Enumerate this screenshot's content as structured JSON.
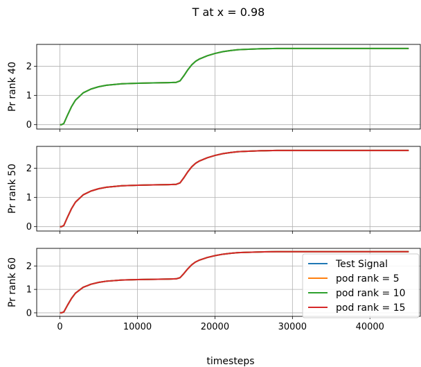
{
  "chart_data": {
    "type": "line",
    "title": "T at x = 0.98",
    "xlabel": "timesteps",
    "xlim": [
      -3000,
      46500
    ],
    "xticks": [
      0,
      10000,
      20000,
      30000,
      40000
    ],
    "xtick_labels": [
      "0",
      "10000",
      "20000",
      "30000",
      "40000"
    ],
    "grid": true,
    "x": [
      0,
      200,
      500,
      1000,
      1500,
      2000,
      3000,
      4000,
      5000,
      6000,
      8000,
      10000,
      12000,
      14000,
      15000,
      15500,
      16000,
      16500,
      17000,
      17500,
      18000,
      19000,
      20000,
      21000,
      22000,
      23000,
      24000,
      26000,
      28000,
      30000,
      35000,
      40000,
      45000
    ],
    "panels": [
      {
        "ylabel": "Pr rank 40",
        "ylim": [
          -0.15,
          2.75
        ],
        "yticks": [
          0,
          1,
          2
        ],
        "ytick_labels": [
          "0",
          "1",
          "2"
        ],
        "series": [
          {
            "name": "Test Signal",
            "color": "#1f77b4",
            "values": [
              0.0,
              0.0,
              0.04,
              0.34,
              0.62,
              0.84,
              1.09,
              1.22,
              1.3,
              1.35,
              1.4,
              1.42,
              1.43,
              1.44,
              1.45,
              1.5,
              1.68,
              1.88,
              2.05,
              2.17,
              2.25,
              2.36,
              2.44,
              2.5,
              2.54,
              2.57,
              2.58,
              2.6,
              2.61,
              2.61,
              2.61,
              2.61,
              2.61
            ]
          },
          {
            "name": "pod rank = 5",
            "color": "#ff7f0e",
            "values": [
              0.0,
              0.0,
              0.04,
              0.34,
              0.62,
              0.84,
              1.09,
              1.22,
              1.3,
              1.35,
              1.4,
              1.42,
              1.43,
              1.44,
              1.45,
              1.5,
              1.68,
              1.88,
              2.05,
              2.17,
              2.25,
              2.36,
              2.44,
              2.5,
              2.54,
              2.57,
              2.58,
              2.6,
              2.61,
              2.61,
              2.61,
              2.61,
              2.61
            ]
          },
          {
            "name": "pod rank = 10",
            "color": "#2ca02c",
            "values": [
              0.0,
              0.0,
              0.04,
              0.34,
              0.62,
              0.84,
              1.09,
              1.22,
              1.3,
              1.35,
              1.4,
              1.42,
              1.43,
              1.44,
              1.45,
              1.5,
              1.68,
              1.88,
              2.05,
              2.17,
              2.25,
              2.36,
              2.44,
              2.5,
              2.54,
              2.57,
              2.58,
              2.6,
              2.61,
              2.61,
              2.61,
              2.61,
              2.61
            ]
          }
        ]
      },
      {
        "ylabel": "Pr rank 50",
        "ylim": [
          -0.15,
          2.75
        ],
        "yticks": [
          0,
          1,
          2
        ],
        "ytick_labels": [
          "0",
          "1",
          "2"
        ],
        "series": [
          {
            "name": "Test Signal",
            "color": "#1f77b4",
            "values": [
              0.0,
              0.0,
              0.04,
              0.34,
              0.62,
              0.84,
              1.09,
              1.22,
              1.3,
              1.35,
              1.4,
              1.42,
              1.43,
              1.44,
              1.45,
              1.5,
              1.68,
              1.88,
              2.05,
              2.17,
              2.25,
              2.36,
              2.44,
              2.5,
              2.54,
              2.57,
              2.58,
              2.6,
              2.61,
              2.61,
              2.61,
              2.61,
              2.61
            ]
          },
          {
            "name": "pod rank = 5",
            "color": "#ff7f0e",
            "values": [
              0.0,
              0.0,
              0.04,
              0.34,
              0.62,
              0.84,
              1.09,
              1.22,
              1.3,
              1.35,
              1.4,
              1.42,
              1.43,
              1.44,
              1.45,
              1.5,
              1.68,
              1.88,
              2.05,
              2.17,
              2.25,
              2.36,
              2.44,
              2.5,
              2.54,
              2.57,
              2.58,
              2.6,
              2.61,
              2.61,
              2.61,
              2.61,
              2.61
            ]
          },
          {
            "name": "pod rank = 10",
            "color": "#2ca02c",
            "values": [
              0.0,
              0.0,
              0.04,
              0.34,
              0.62,
              0.84,
              1.09,
              1.22,
              1.3,
              1.35,
              1.4,
              1.42,
              1.43,
              1.44,
              1.45,
              1.5,
              1.68,
              1.88,
              2.05,
              2.17,
              2.25,
              2.36,
              2.44,
              2.5,
              2.54,
              2.57,
              2.58,
              2.6,
              2.61,
              2.61,
              2.61,
              2.61,
              2.61
            ]
          },
          {
            "name": "pod rank = 15",
            "color": "#d62728",
            "values": [
              0.0,
              0.0,
              0.04,
              0.34,
              0.62,
              0.84,
              1.09,
              1.22,
              1.3,
              1.35,
              1.4,
              1.42,
              1.43,
              1.44,
              1.45,
              1.5,
              1.68,
              1.88,
              2.05,
              2.17,
              2.25,
              2.36,
              2.44,
              2.5,
              2.54,
              2.57,
              2.58,
              2.6,
              2.61,
              2.61,
              2.61,
              2.61,
              2.61
            ]
          }
        ]
      },
      {
        "ylabel": "Pr rank 60",
        "ylim": [
          -0.15,
          2.75
        ],
        "yticks": [
          0,
          1,
          2
        ],
        "ytick_labels": [
          "0",
          "1",
          "2"
        ],
        "legend": "top-right",
        "series": [
          {
            "name": "Test Signal",
            "color": "#1f77b4",
            "values": [
              0.0,
              0.0,
              0.04,
              0.34,
              0.62,
              0.84,
              1.09,
              1.22,
              1.3,
              1.35,
              1.4,
              1.42,
              1.43,
              1.44,
              1.45,
              1.5,
              1.68,
              1.88,
              2.05,
              2.17,
              2.25,
              2.36,
              2.44,
              2.5,
              2.54,
              2.57,
              2.58,
              2.6,
              2.61,
              2.61,
              2.61,
              2.61,
              2.61
            ]
          },
          {
            "name": "pod rank = 5",
            "color": "#ff7f0e",
            "values": [
              0.0,
              0.0,
              0.04,
              0.34,
              0.62,
              0.84,
              1.09,
              1.22,
              1.3,
              1.35,
              1.4,
              1.42,
              1.43,
              1.44,
              1.45,
              1.5,
              1.68,
              1.88,
              2.05,
              2.17,
              2.25,
              2.36,
              2.44,
              2.5,
              2.54,
              2.57,
              2.58,
              2.6,
              2.61,
              2.61,
              2.61,
              2.61,
              2.61
            ]
          },
          {
            "name": "pod rank = 10",
            "color": "#2ca02c",
            "values": [
              0.0,
              0.0,
              0.04,
              0.34,
              0.62,
              0.84,
              1.09,
              1.22,
              1.3,
              1.35,
              1.4,
              1.42,
              1.43,
              1.44,
              1.45,
              1.5,
              1.68,
              1.88,
              2.05,
              2.17,
              2.25,
              2.36,
              2.44,
              2.5,
              2.54,
              2.57,
              2.58,
              2.6,
              2.61,
              2.61,
              2.61,
              2.61,
              2.61
            ]
          },
          {
            "name": "pod rank = 15",
            "color": "#d62728",
            "values": [
              0.0,
              0.0,
              0.04,
              0.34,
              0.62,
              0.84,
              1.09,
              1.22,
              1.3,
              1.35,
              1.4,
              1.42,
              1.43,
              1.44,
              1.45,
              1.5,
              1.68,
              1.88,
              2.05,
              2.17,
              2.25,
              2.36,
              2.44,
              2.5,
              2.54,
              2.57,
              2.58,
              2.6,
              2.61,
              2.61,
              2.61,
              2.61,
              2.61
            ]
          }
        ]
      }
    ]
  }
}
